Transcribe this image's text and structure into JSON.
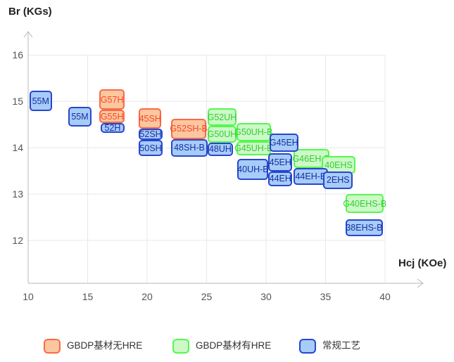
{
  "chart_data": {
    "type": "scatter",
    "subtype": "labeled-range-boxes",
    "title": "",
    "xlabel": "Hcj (KOe)",
    "ylabel": "Br (KGs)",
    "xlim": [
      10,
      41.5
    ],
    "ylim": [
      11.1,
      16.5
    ],
    "x_ticks": [
      10,
      15,
      20,
      25,
      30,
      35,
      40
    ],
    "y_ticks": [
      12,
      13,
      14,
      15,
      16
    ],
    "grid": "on",
    "legend_position": "bottom",
    "series": [
      {
        "name": "GBDP基材无HRE",
        "fill": "#FBC7A0",
        "border": "#FB6A45",
        "text_color": "#FB4724",
        "points": [
          {
            "label": "G57H",
            "hcj": [
              16.0,
              18.1
            ],
            "br": [
              14.82,
              15.26
            ]
          },
          {
            "label": "G55H",
            "hcj": [
              16.0,
              18.1
            ],
            "br": [
              14.53,
              14.82
            ]
          },
          {
            "label": "45SH",
            "hcj": [
              19.3,
              21.2
            ],
            "br": [
              14.41,
              14.85
            ]
          },
          {
            "label": "G52SH-B",
            "hcj": [
              22.0,
              25.0
            ],
            "br": [
              14.19,
              14.63
            ]
          }
        ]
      },
      {
        "name": "GBDP基材有HRE",
        "fill": "#CDF8C8",
        "border": "#55F74E",
        "text_color": "#33CE33",
        "points": [
          {
            "label": "G52UH",
            "hcj": [
              25.1,
              27.5
            ],
            "br": [
              14.47,
              14.85
            ]
          },
          {
            "label": "G50UH",
            "hcj": [
              25.1,
              27.5
            ],
            "br": [
              14.11,
              14.47
            ]
          },
          {
            "label": "G50UH-B",
            "hcj": [
              27.5,
              30.4
            ],
            "br": [
              14.14,
              14.53
            ]
          },
          {
            "label": "G45UH-B",
            "hcj": [
              27.5,
              30.4
            ],
            "br": [
              13.84,
              14.14
            ]
          },
          {
            "label": "G46EH-B",
            "hcj": [
              32.3,
              35.3
            ],
            "br": [
              13.56,
              13.97
            ]
          },
          {
            "label": "40EHS",
            "hcj": [
              34.7,
              37.5
            ],
            "br": [
              13.44,
              13.82
            ]
          },
          {
            "label": "G40EHS-B",
            "hcj": [
              36.7,
              39.9
            ],
            "br": [
              12.59,
              13.0
            ]
          }
        ]
      },
      {
        "name": "常规工艺",
        "fill": "#A6CCF7",
        "border": "#2946CE",
        "text_color": "#162FA4",
        "points": [
          {
            "label": "55M",
            "hcj": [
              10.1,
              12.0
            ],
            "br": [
              14.79,
              15.23
            ]
          },
          {
            "label": "55M",
            "hcj": [
              13.4,
              15.3
            ],
            "br": [
              14.46,
              14.88
            ]
          },
          {
            "label": "52H",
            "hcj": [
              16.1,
              18.1
            ],
            "br": [
              14.32,
              14.53
            ]
          },
          {
            "label": "52SH",
            "hcj": [
              19.3,
              21.3
            ],
            "br": [
              14.17,
              14.41
            ]
          },
          {
            "label": "50SH",
            "hcj": [
              19.3,
              21.3
            ],
            "br": [
              13.82,
              14.17
            ]
          },
          {
            "label": "48SH-B",
            "hcj": [
              22.0,
              25.1
            ],
            "br": [
              13.81,
              14.19
            ]
          },
          {
            "label": "48UH",
            "hcj": [
              25.1,
              27.2
            ],
            "br": [
              13.82,
              14.11
            ]
          },
          {
            "label": "40UH-B",
            "hcj": [
              27.6,
              30.2
            ],
            "br": [
              13.3,
              13.76
            ]
          },
          {
            "label": "G45EH",
            "hcj": [
              30.3,
              32.7
            ],
            "br": [
              13.91,
              14.31
            ]
          },
          {
            "label": "45EH",
            "hcj": [
              30.2,
              32.2
            ],
            "br": [
              13.49,
              13.88
            ]
          },
          {
            "label": "44EH",
            "hcj": [
              30.2,
              32.2
            ],
            "br": [
              13.17,
              13.49
            ]
          },
          {
            "label": "44EH-B",
            "hcj": [
              32.3,
              35.2
            ],
            "br": [
              13.2,
              13.56
            ]
          },
          {
            "label": "2EHS",
            "hcj": [
              34.8,
              37.3
            ],
            "br": [
              13.11,
              13.49
            ]
          },
          {
            "label": "38EHS-B",
            "hcj": [
              36.7,
              39.8
            ],
            "br": [
              12.09,
              12.46
            ]
          }
        ]
      }
    ]
  },
  "axes": {
    "y_title": "Br (KGs)",
    "x_title": "Hcj (KOe)"
  },
  "legend": {
    "items": [
      {
        "label": "GBDP基材无HRE"
      },
      {
        "label": "GBDP基材有HRE"
      },
      {
        "label": "常规工艺"
      }
    ]
  },
  "colors": {
    "grid_line": "#e8e8e8",
    "axis_line": "#c4c4c4",
    "tick_text": "#555555",
    "background": "#ffffff"
  }
}
